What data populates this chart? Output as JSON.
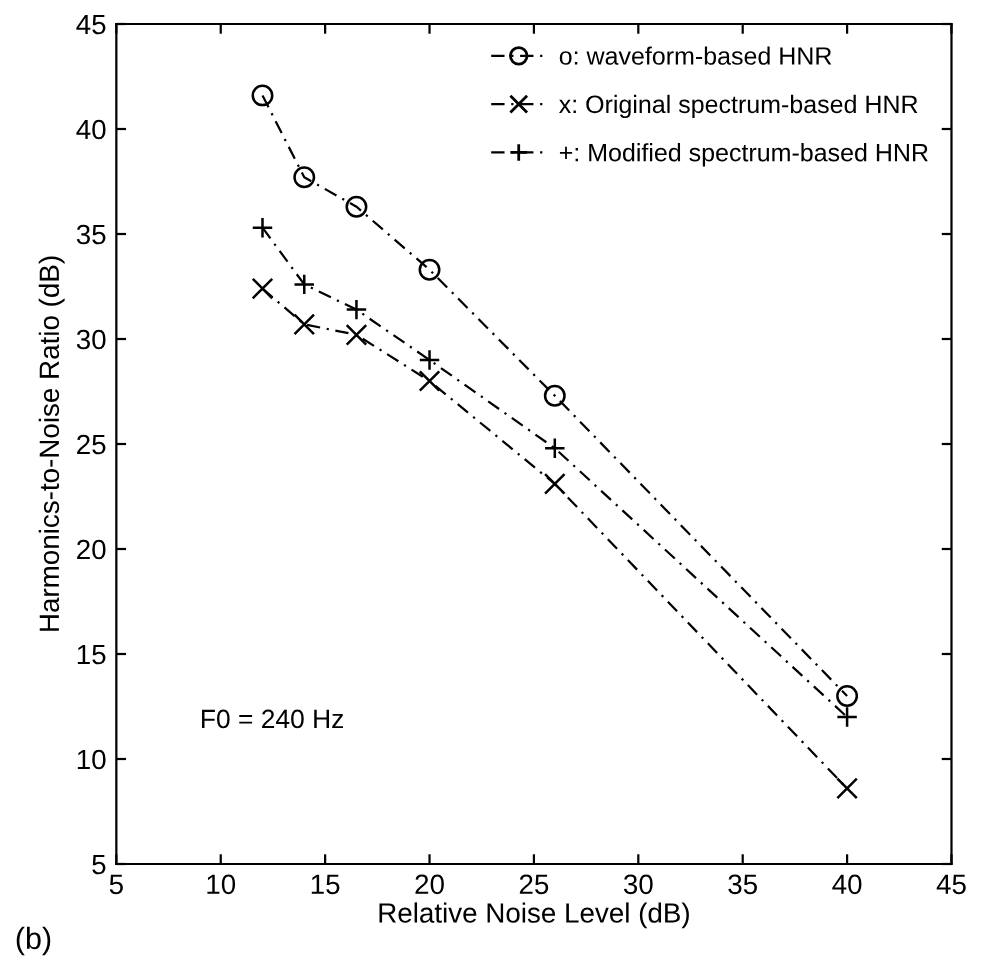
{
  "chart_data": {
    "type": "line",
    "xlabel": "Relative Noise Level (dB)",
    "ylabel": "Harmonics-to-Noise Ratio (dB)",
    "x": [
      12,
      14,
      16.5,
      20,
      26,
      40
    ],
    "series": [
      {
        "name": "o: waveform-based HNR",
        "color": "#000000",
        "marker": "circle",
        "values": [
          41.6,
          37.7,
          36.3,
          33.3,
          27.3,
          13.0
        ]
      },
      {
        "name": "x: Original spectrum-based HNR",
        "color": "#000000",
        "marker": "cross",
        "values": [
          32.4,
          30.7,
          30.2,
          28.0,
          23.1,
          8.6
        ]
      },
      {
        "name": "+: Modified spectrum-based HNR",
        "color": "#000000",
        "marker": "plus",
        "values": [
          35.3,
          32.6,
          31.4,
          29.0,
          24.8,
          12.0
        ]
      }
    ],
    "line_style": "dashed",
    "legend": "top right",
    "grid": false,
    "xlim": [
      5,
      45
    ],
    "xticks": [
      5,
      10,
      15,
      20,
      25,
      30,
      35,
      40,
      45
    ],
    "ylim": [
      5,
      45
    ],
    "yticks": [
      5,
      10,
      15,
      20,
      25,
      30,
      35,
      40,
      45
    ],
    "annotations": [
      "F0 = 240 Hz",
      "(b)"
    ]
  }
}
